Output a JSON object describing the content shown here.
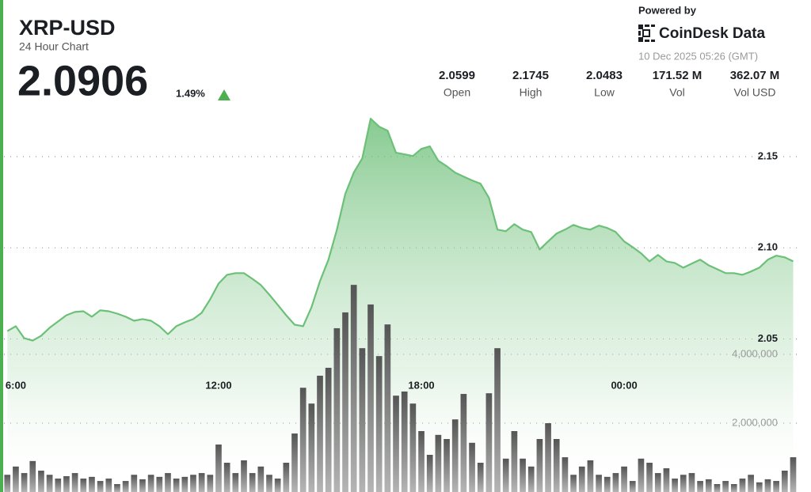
{
  "header": {
    "title": "XRP-USD",
    "subtitle": "24 Hour Chart",
    "price": "2.0906",
    "change": "1.49%",
    "powered_by": "Powered by",
    "brand": "CoinDesk Data",
    "timestamp": "10 Dec 2025 05:26 (GMT)"
  },
  "stats": [
    {
      "value": "2.0599",
      "label": "Open"
    },
    {
      "value": "2.1745",
      "label": "High"
    },
    {
      "value": "2.0483",
      "label": "Low"
    },
    {
      "value": "171.52 M",
      "label": "Vol"
    },
    {
      "value": "362.07 M",
      "label": "Vol USD"
    }
  ],
  "chart_data": [
    {
      "type": "area",
      "color": "#6cc078",
      "xlim": [
        5.65,
        29.2
      ],
      "xticks": [
        {
          "value": 6,
          "label": "6:00"
        },
        {
          "value": 12,
          "label": "12:00"
        },
        {
          "value": 18,
          "label": "18:00"
        },
        {
          "value": 24,
          "label": "00:00"
        }
      ],
      "ylim": [
        1.966,
        2.1774
      ],
      "yticks": [
        2.05,
        {
          "value": 2.1,
          "label": "2.10"
        },
        2.15
      ],
      "grid": true,
      "x": [
        5.75,
        6,
        6.25,
        6.5,
        6.75,
        7,
        7.25,
        7.5,
        7.75,
        8,
        8.25,
        8.5,
        8.75,
        9,
        9.25,
        9.5,
        9.75,
        10,
        10.25,
        10.5,
        10.75,
        11,
        11.25,
        11.5,
        11.75,
        12,
        12.25,
        12.5,
        12.75,
        13,
        13.25,
        13.5,
        13.75,
        14,
        14.25,
        14.5,
        14.75,
        15,
        15.25,
        15.5,
        15.75,
        16,
        16.25,
        16.5,
        16.75,
        17,
        17.25,
        17.5,
        17.75,
        18,
        18.25,
        18.5,
        18.75,
        19,
        19.25,
        19.5,
        19.75,
        20,
        20.25,
        20.5,
        20.75,
        21,
        21.25,
        21.5,
        21.75,
        22,
        22.25,
        22.5,
        22.75,
        23,
        23.25,
        23.5,
        23.75,
        24,
        24.25,
        24.5,
        24.75,
        25,
        25.25,
        25.5,
        25.75,
        26,
        26.25,
        26.5,
        26.75,
        27,
        27.25,
        27.5,
        27.75,
        28,
        28.25,
        28.5,
        28.75,
        29
      ],
      "values": [
        2.0543,
        2.057,
        2.0504,
        2.0491,
        2.0517,
        2.0561,
        2.0596,
        2.063,
        2.0648,
        2.0652,
        2.0622,
        2.0657,
        2.0652,
        2.0639,
        2.0622,
        2.06,
        2.0609,
        2.06,
        2.057,
        2.0526,
        2.057,
        2.0591,
        2.0609,
        2.0643,
        2.0717,
        2.0804,
        2.0852,
        2.0861,
        2.0861,
        2.083,
        2.0796,
        2.0743,
        2.0687,
        2.063,
        2.0578,
        2.057,
        2.0674,
        2.0817,
        2.0935,
        2.11,
        2.1296,
        2.1413,
        2.1491,
        2.1709,
        2.1665,
        2.1643,
        2.1522,
        2.1513,
        2.1504,
        2.1543,
        2.1557,
        2.1478,
        2.1448,
        2.1413,
        2.1391,
        2.137,
        2.1352,
        2.1274,
        2.11,
        2.1091,
        2.113,
        2.11,
        2.1087,
        2.0991,
        2.1035,
        2.1078,
        2.11,
        2.1126,
        2.1109,
        2.11,
        2.1122,
        2.1109,
        2.1087,
        2.1035,
        2.1004,
        2.097,
        2.0926,
        2.0961,
        2.0926,
        2.0917,
        2.0891,
        2.0913,
        2.0935,
        2.0904,
        2.0883,
        2.0861,
        2.0861,
        2.0852,
        2.087,
        2.0891,
        2.0935,
        2.0957,
        2.0948,
        2.0926
      ]
    },
    {
      "type": "bar",
      "color": "#6b6b6b",
      "xlim": [
        5.65,
        29.2
      ],
      "ylim": [
        0,
        7000000
      ],
      "yticks": [
        {
          "value": 2000000,
          "label": "2,000,000"
        },
        {
          "value": 4000000,
          "label": "4,000,000"
        }
      ],
      "grid": true,
      "x": [
        5.75,
        6,
        6.25,
        6.5,
        6.75,
        7,
        7.25,
        7.5,
        7.75,
        8,
        8.25,
        8.5,
        8.75,
        9,
        9.25,
        9.5,
        9.75,
        10,
        10.25,
        10.5,
        10.75,
        11,
        11.25,
        11.5,
        11.75,
        12,
        12.25,
        12.5,
        12.75,
        13,
        13.25,
        13.5,
        13.75,
        14,
        14.25,
        14.5,
        14.75,
        15,
        15.25,
        15.5,
        15.75,
        16,
        16.25,
        16.5,
        16.75,
        17,
        17.25,
        17.5,
        17.75,
        18,
        18.25,
        18.5,
        18.75,
        19,
        19.25,
        19.5,
        19.75,
        20,
        20.25,
        20.5,
        20.75,
        21,
        21.25,
        21.5,
        21.75,
        22,
        22.25,
        22.5,
        22.75,
        23,
        23.25,
        23.5,
        23.75,
        24,
        24.25,
        24.5,
        24.75,
        25,
        25.25,
        25.5,
        25.75,
        26,
        26.25,
        26.5,
        26.75,
        27,
        27.25,
        27.5,
        27.75,
        28,
        28.25,
        28.5,
        28.75,
        29
      ],
      "values": [
        500000,
        740000,
        550000,
        900000,
        620000,
        500000,
        390000,
        460000,
        550000,
        390000,
        440000,
        320000,
        390000,
        230000,
        320000,
        500000,
        370000,
        500000,
        440000,
        550000,
        390000,
        440000,
        500000,
        550000,
        500000,
        1380000,
        850000,
        550000,
        920000,
        550000,
        740000,
        500000,
        390000,
        850000,
        1700000,
        3030000,
        2570000,
        3380000,
        3610000,
        4760000,
        5220000,
        6020000,
        4180000,
        5450000,
        3950000,
        4870000,
        2800000,
        2920000,
        2570000,
        1770000,
        1080000,
        1660000,
        1540000,
        2110000,
        2850000,
        1430000,
        850000,
        2870000,
        4180000,
        970000,
        1770000,
        970000,
        740000,
        1540000,
        2000000,
        1540000,
        1010000,
        500000,
        740000,
        920000,
        500000,
        440000,
        550000,
        740000,
        320000,
        970000,
        850000,
        550000,
        690000,
        390000,
        500000,
        550000,
        320000,
        370000,
        230000,
        320000,
        230000,
        390000,
        500000,
        280000,
        370000,
        320000,
        620000,
        1010000
      ]
    }
  ]
}
